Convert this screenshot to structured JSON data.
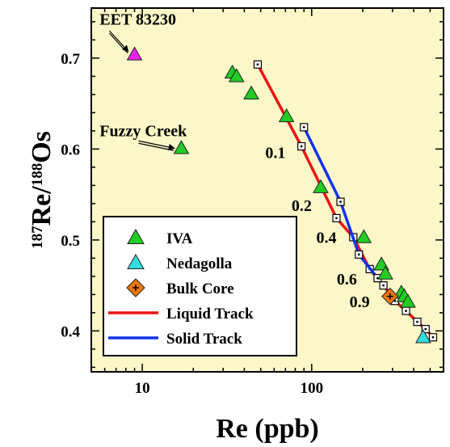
{
  "chart_data": {
    "type": "scatter",
    "x_axis": {
      "label": "Re (ppb)",
      "scale": "log",
      "range": [
        5,
        600
      ],
      "tick_labels": [
        "10",
        "100"
      ],
      "tick_values": [
        10,
        100
      ]
    },
    "y_axis": {
      "label_sup1": "187",
      "label_main1": "Re/",
      "label_sup2": "188",
      "label_main2": "Os",
      "range": [
        0.355,
        0.755
      ],
      "tick_labels": [
        "0.4",
        "0.5",
        "0.6",
        "0.7"
      ],
      "tick_values": [
        0.4,
        0.5,
        0.6,
        0.7
      ]
    },
    "plot_background": "#fcf7c8",
    "series": [
      {
        "name": "IVA",
        "marker": "triangle",
        "color": "#22cc22",
        "points": [
          {
            "x": 17,
            "y": 0.601
          },
          {
            "x": 34,
            "y": 0.684
          },
          {
            "x": 36,
            "y": 0.68
          },
          {
            "x": 44,
            "y": 0.661
          },
          {
            "x": 71,
            "y": 0.636
          },
          {
            "x": 113,
            "y": 0.558
          },
          {
            "x": 203,
            "y": 0.503
          },
          {
            "x": 258,
            "y": 0.473
          },
          {
            "x": 272,
            "y": 0.463
          },
          {
            "x": 338,
            "y": 0.442
          },
          {
            "x": 352,
            "y": 0.438
          },
          {
            "x": 370,
            "y": 0.432
          }
        ]
      },
      {
        "name": "EET 83230",
        "marker": "triangle",
        "color": "#ee22ee",
        "points": [
          {
            "x": 9,
            "y": 0.704
          }
        ]
      },
      {
        "name": "Nedagolla",
        "marker": "triangle",
        "color": "#33dddd",
        "points": [
          {
            "x": 455,
            "y": 0.393
          }
        ]
      },
      {
        "name": "Bulk Core",
        "marker": "diamond-plus",
        "color": "#ee7711",
        "points": [
          {
            "x": 290,
            "y": 0.438
          }
        ]
      }
    ],
    "tracks": [
      {
        "name": "Liquid Track",
        "color": "#ee1111",
        "points": [
          [
            48,
            0.693
          ],
          [
            87,
            0.603
          ],
          [
            140,
            0.524
          ],
          [
            176,
            0.503
          ],
          [
            220,
            0.468
          ],
          [
            265,
            0.45
          ],
          [
            310,
            0.433
          ],
          [
            360,
            0.422
          ],
          [
            420,
            0.41
          ],
          [
            470,
            0.402
          ],
          [
            520,
            0.393
          ]
        ]
      },
      {
        "name": "Solid Track",
        "color": "#1133ee",
        "points": [
          [
            90,
            0.624
          ],
          [
            148,
            0.542
          ],
          [
            190,
            0.484
          ],
          [
            245,
            0.458
          ]
        ]
      }
    ],
    "track_labels": [
      "0.1",
      "0.2",
      "0.4",
      "0.6",
      "0.9"
    ],
    "track_label_positions": [
      {
        "x": 70,
        "y": 0.59
      },
      {
        "x": 100,
        "y": 0.532
      },
      {
        "x": 140,
        "y": 0.497
      },
      {
        "x": 185,
        "y": 0.451
      },
      {
        "x": 220,
        "y": 0.426
      }
    ],
    "annotations": [
      {
        "text": "EET 83230",
        "x": 5.6,
        "y": 0.737,
        "arrow_to": [
          8.2,
          0.708
        ],
        "arrow_from": [
          6.4,
          0.73
        ]
      },
      {
        "text": "Fuzzy Creek",
        "x": 5.6,
        "y": 0.614,
        "arrow_to": [
          15.3,
          0.601
        ],
        "arrow_from": [
          9.5,
          0.609
        ]
      }
    ],
    "legend": {
      "position": "bottom-left",
      "entries": [
        {
          "label": "IVA",
          "marker": "triangle",
          "color": "#22cc22"
        },
        {
          "label": "Nedagolla",
          "marker": "triangle",
          "color": "#33dddd"
        },
        {
          "label": "Bulk Core",
          "marker": "diamond-plus",
          "color": "#ee7711"
        },
        {
          "label": "Liquid Track",
          "marker": "line",
          "color": "#ee1111"
        },
        {
          "label": "Solid Track",
          "marker": "line",
          "color": "#1133ee"
        }
      ]
    },
    "grid": false
  }
}
